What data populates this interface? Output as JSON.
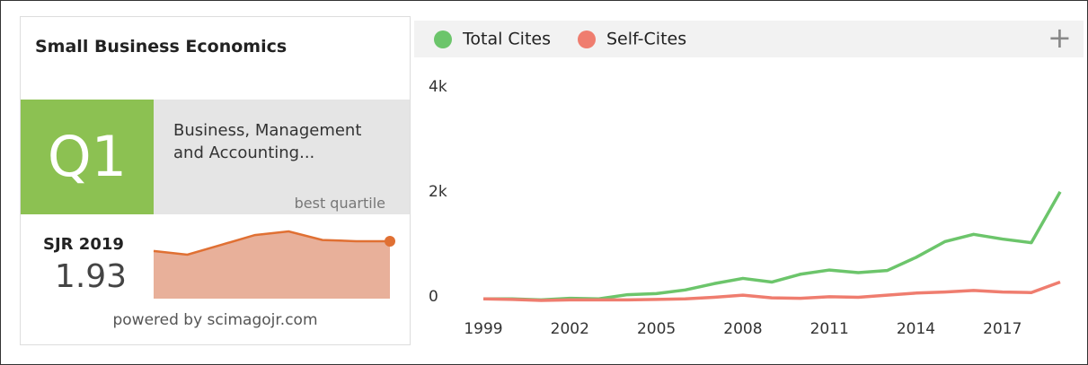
{
  "widget": {
    "title": "Small Business Economics",
    "quartile": "Q1",
    "category": "Business, Management and Accounting...",
    "quartile_note": "best quartile",
    "sjr_label": "SJR 2019",
    "sjr_value": "1.93",
    "footer": "powered by scimagojr.com",
    "expand_button": "+"
  },
  "chart_data": [
    {
      "type": "line",
      "x": [
        1999,
        2000,
        2001,
        2002,
        2003,
        2004,
        2005,
        2006,
        2007,
        2008,
        2009,
        2010,
        2011,
        2012,
        2013,
        2014,
        2015,
        2016,
        2017,
        2018,
        2019
      ],
      "series": [
        {
          "name": "Total Cites",
          "color": "#6cc56b",
          "values": [
            30,
            30,
            10,
            40,
            30,
            110,
            130,
            200,
            320,
            420,
            350,
            500,
            580,
            530,
            570,
            820,
            1120,
            1260,
            1170,
            1100,
            2070
          ]
        },
        {
          "name": "Self-Cites",
          "color": "#ef7d6f",
          "values": [
            30,
            20,
            0,
            10,
            10,
            10,
            20,
            30,
            60,
            100,
            50,
            40,
            70,
            60,
            100,
            140,
            160,
            190,
            160,
            150,
            350
          ]
        }
      ],
      "xlim": [
        1999,
        2019
      ],
      "xticks": [
        1999,
        2002,
        2005,
        2008,
        2011,
        2014,
        2017
      ],
      "ylim": [
        0,
        4000
      ],
      "yticks": [
        0,
        {
          "value": 2000,
          "label": "2k"
        },
        {
          "value": 4000,
          "label": "4k"
        }
      ]
    },
    {
      "type": "area",
      "color": "#e07033",
      "fill": "#e8b09a",
      "values": [
        1.85,
        1.82,
        1.9,
        1.98,
        2.01,
        1.94,
        1.93,
        1.93
      ]
    }
  ]
}
